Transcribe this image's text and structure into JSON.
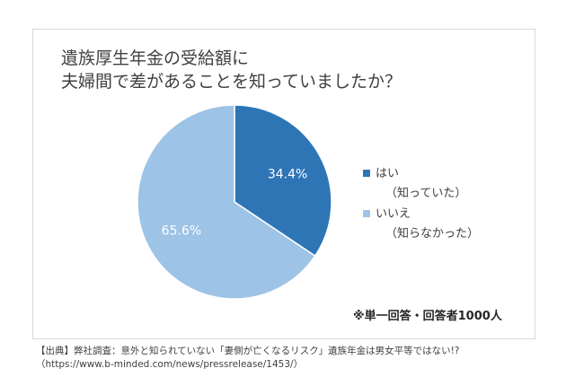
{
  "chart_data": {
    "type": "pie",
    "title_lines": [
      "遺族厚生年金の受給額に",
      "夫婦間で差があることを知っていましたか？"
    ],
    "slices": [
      {
        "label": "はい",
        "sublabel": "（知っていた）",
        "value": 34.4,
        "display": "34.4%",
        "color": "#2e75b6"
      },
      {
        "label": "いいえ",
        "sublabel": "（知らなかった）",
        "value": 65.6,
        "display": "65.6%",
        "color": "#9dc3e6"
      }
    ],
    "legend_position": "right"
  },
  "note": "※単一回答・回答者1000人",
  "source_line1": "【出典】弊社調査：意外と知られていない「妻側が亡くなるリスク」遺族年金は男女平等ではない!?",
  "source_line2": "（https://www.b-minded.com/news/pressrelease/1453/）"
}
